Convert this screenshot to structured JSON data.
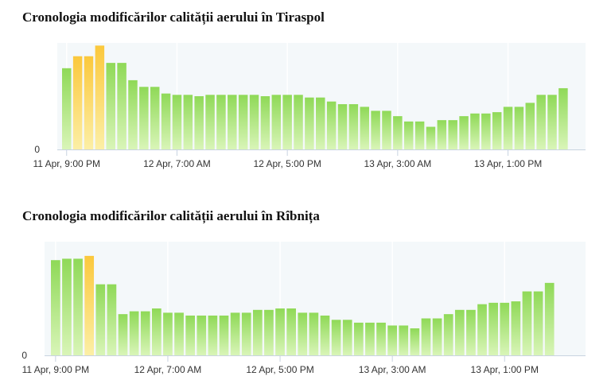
{
  "chart_data": [
    {
      "type": "bar",
      "title": "Cronologia modificărilor calității aerului în Tiraspol",
      "y_tick_label": "0",
      "x_tick_labels": [
        "11 Apr, 9:00 PM",
        "12 Apr, 7:00 AM",
        "12 Apr, 5:00 PM",
        "13 Apr, 3:00 AM",
        "13 Apr, 1:00 PM"
      ],
      "x_tick_positions": [
        0,
        10,
        20,
        30,
        40
      ],
      "ylim": [
        0,
        80
      ],
      "grid": true,
      "values": [
        61,
        70,
        70,
        78,
        65,
        65,
        52,
        47,
        47,
        42,
        41,
        41,
        40,
        41,
        41,
        41,
        41,
        41,
        40,
        41,
        41,
        41,
        39,
        39,
        36,
        34,
        34,
        32,
        29,
        29,
        25,
        21,
        21,
        17,
        22,
        22,
        25,
        27,
        27,
        28,
        32,
        32,
        35,
        41,
        41,
        46
      ],
      "status": [
        "moderate",
        "elevated",
        "elevated",
        "elevated",
        "moderate",
        "moderate",
        "moderate",
        "moderate",
        "moderate",
        "moderate",
        "moderate",
        "moderate",
        "moderate",
        "moderate",
        "moderate",
        "moderate",
        "moderate",
        "moderate",
        "moderate",
        "moderate",
        "moderate",
        "moderate",
        "moderate",
        "moderate",
        "moderate",
        "moderate",
        "moderate",
        "moderate",
        "moderate",
        "moderate",
        "moderate",
        "moderate",
        "moderate",
        "moderate",
        "moderate",
        "moderate",
        "moderate",
        "moderate",
        "moderate",
        "moderate",
        "moderate",
        "moderate",
        "moderate",
        "moderate",
        "moderate",
        "moderate"
      ]
    },
    {
      "type": "bar",
      "title": "Cronologia modificărilor calității aerului în Rîbnița",
      "y_tick_label": "0",
      "x_tick_labels": [
        "11 Apr, 9:00 PM",
        "12 Apr, 7:00 AM",
        "12 Apr, 5:00 PM",
        "13 Apr, 3:00 AM",
        "13 Apr, 1:00 PM"
      ],
      "x_tick_positions": [
        0,
        10,
        20,
        30,
        40
      ],
      "ylim": [
        0,
        80
      ],
      "grid": true,
      "values": [
        67,
        68,
        68,
        70,
        50,
        50,
        29,
        31,
        31,
        33,
        30,
        30,
        28,
        28,
        28,
        28,
        30,
        30,
        32,
        32,
        33,
        33,
        30,
        30,
        28,
        25,
        25,
        23,
        23,
        23,
        21,
        21,
        19,
        26,
        26,
        29,
        32,
        32,
        36,
        37,
        37,
        38,
        45,
        45,
        51
      ],
      "status": [
        "moderate",
        "moderate",
        "moderate",
        "elevated",
        "moderate",
        "moderate",
        "moderate",
        "moderate",
        "moderate",
        "moderate",
        "moderate",
        "moderate",
        "moderate",
        "moderate",
        "moderate",
        "moderate",
        "moderate",
        "moderate",
        "moderate",
        "moderate",
        "moderate",
        "moderate",
        "moderate",
        "moderate",
        "moderate",
        "moderate",
        "moderate",
        "moderate",
        "moderate",
        "moderate",
        "moderate",
        "moderate",
        "moderate",
        "moderate",
        "moderate",
        "moderate",
        "moderate",
        "moderate",
        "moderate",
        "moderate",
        "moderate",
        "moderate",
        "moderate",
        "moderate",
        "moderate"
      ]
    }
  ],
  "colors": {
    "plot_background": "#f4f8fa",
    "grid": "#ffffff",
    "axis": "#c8d3e0",
    "moderate_top": "#8fd957",
    "moderate_bottom": "#d9f5b8",
    "elevated_top": "#fbc83c",
    "elevated_bottom": "#fcefa6"
  }
}
